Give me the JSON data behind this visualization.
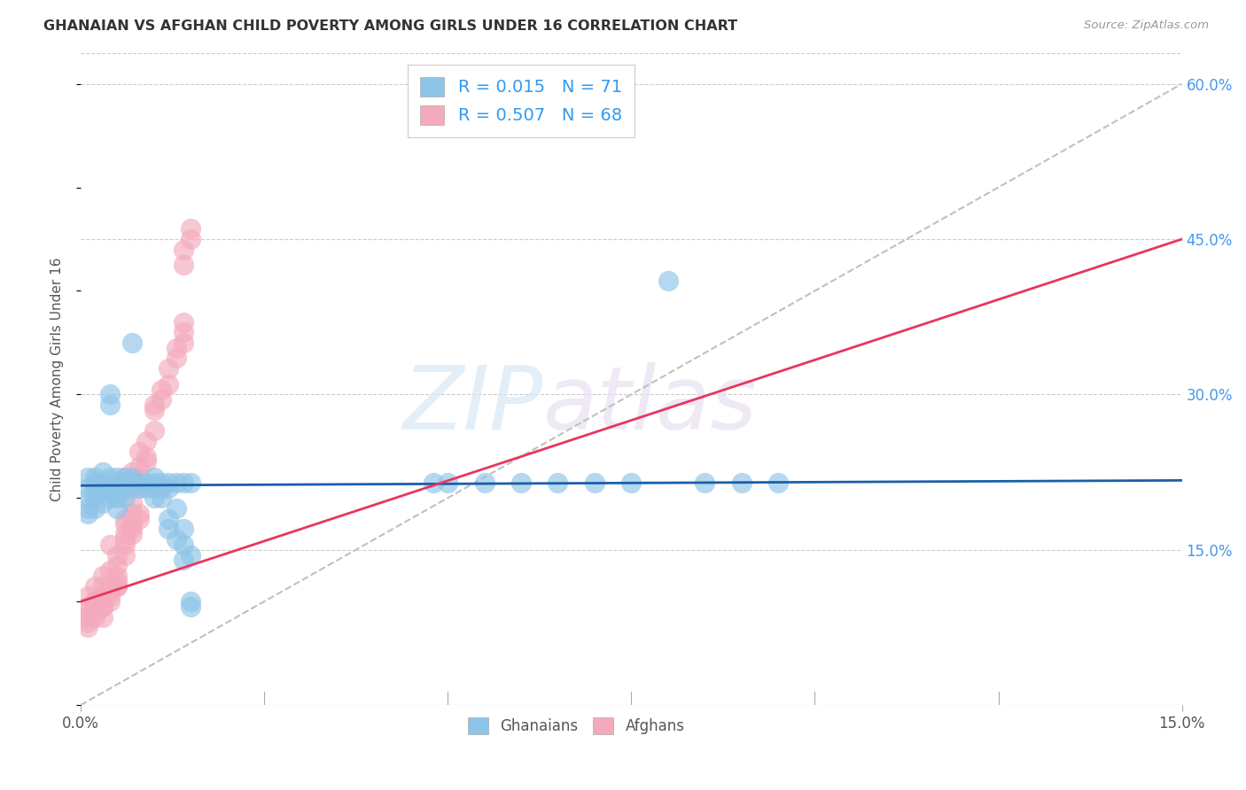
{
  "title": "GHANAIAN VS AFGHAN CHILD POVERTY AMONG GIRLS UNDER 16 CORRELATION CHART",
  "source": "Source: ZipAtlas.com",
  "ylabel": "Child Poverty Among Girls Under 16",
  "xmin": 0.0,
  "xmax": 0.15,
  "ymin": 0.0,
  "ymax": 0.63,
  "yticks": [
    0.15,
    0.3,
    0.45,
    0.6
  ],
  "ytick_labels": [
    "15.0%",
    "30.0%",
    "45.0%",
    "60.0%"
  ],
  "xticks": [
    0.0,
    0.15
  ],
  "xtick_labels": [
    "0.0%",
    "15.0%"
  ],
  "xtick_minor": [
    0.025,
    0.05,
    0.075,
    0.1,
    0.125
  ],
  "ghanaian_color": "#8ec4e8",
  "afghan_color": "#f4aabc",
  "ghanaian_line_color": "#1a5fa8",
  "afghan_line_color": "#e8365d",
  "ref_line_color": "#c0c0c0",
  "background_color": "#ffffff",
  "grid_color": "#cccccc",
  "watermark_zip": "ZIP",
  "watermark_atlas": "atlas",
  "ghanaian_N": 71,
  "afghan_N": 68,
  "ghanaian_R": 0.015,
  "afghan_R": 0.507,
  "ghanaian_scatter": [
    [
      0.001,
      0.21
    ],
    [
      0.001,
      0.19
    ],
    [
      0.001,
      0.22
    ],
    [
      0.001,
      0.2
    ],
    [
      0.001,
      0.185
    ],
    [
      0.002,
      0.215
    ],
    [
      0.002,
      0.2
    ],
    [
      0.002,
      0.22
    ],
    [
      0.002,
      0.19
    ],
    [
      0.002,
      0.21
    ],
    [
      0.003,
      0.215
    ],
    [
      0.003,
      0.205
    ],
    [
      0.003,
      0.225
    ],
    [
      0.003,
      0.195
    ],
    [
      0.003,
      0.21
    ],
    [
      0.004,
      0.22
    ],
    [
      0.004,
      0.29
    ],
    [
      0.004,
      0.3
    ],
    [
      0.004,
      0.2
    ],
    [
      0.004,
      0.21
    ],
    [
      0.005,
      0.215
    ],
    [
      0.005,
      0.205
    ],
    [
      0.005,
      0.21
    ],
    [
      0.005,
      0.2
    ],
    [
      0.005,
      0.22
    ],
    [
      0.005,
      0.19
    ],
    [
      0.006,
      0.215
    ],
    [
      0.006,
      0.21
    ],
    [
      0.006,
      0.22
    ],
    [
      0.006,
      0.2
    ],
    [
      0.007,
      0.215
    ],
    [
      0.007,
      0.21
    ],
    [
      0.007,
      0.22
    ],
    [
      0.007,
      0.35
    ],
    [
      0.008,
      0.215
    ],
    [
      0.008,
      0.21
    ],
    [
      0.009,
      0.215
    ],
    [
      0.009,
      0.21
    ],
    [
      0.01,
      0.215
    ],
    [
      0.01,
      0.21
    ],
    [
      0.01,
      0.22
    ],
    [
      0.01,
      0.2
    ],
    [
      0.011,
      0.215
    ],
    [
      0.011,
      0.21
    ],
    [
      0.011,
      0.2
    ],
    [
      0.012,
      0.215
    ],
    [
      0.012,
      0.21
    ],
    [
      0.012,
      0.18
    ],
    [
      0.012,
      0.17
    ],
    [
      0.013,
      0.215
    ],
    [
      0.013,
      0.19
    ],
    [
      0.013,
      0.16
    ],
    [
      0.014,
      0.215
    ],
    [
      0.014,
      0.17
    ],
    [
      0.014,
      0.155
    ],
    [
      0.014,
      0.14
    ],
    [
      0.015,
      0.215
    ],
    [
      0.015,
      0.145
    ],
    [
      0.015,
      0.1
    ],
    [
      0.015,
      0.095
    ],
    [
      0.048,
      0.215
    ],
    [
      0.05,
      0.215
    ],
    [
      0.055,
      0.215
    ],
    [
      0.06,
      0.215
    ],
    [
      0.065,
      0.215
    ],
    [
      0.07,
      0.215
    ],
    [
      0.075,
      0.215
    ],
    [
      0.08,
      0.41
    ],
    [
      0.085,
      0.215
    ],
    [
      0.09,
      0.215
    ],
    [
      0.095,
      0.215
    ]
  ],
  "afghan_scatter": [
    [
      0.001,
      0.09
    ],
    [
      0.001,
      0.085
    ],
    [
      0.001,
      0.095
    ],
    [
      0.001,
      0.105
    ],
    [
      0.002,
      0.1
    ],
    [
      0.002,
      0.095
    ],
    [
      0.002,
      0.085
    ],
    [
      0.002,
      0.115
    ],
    [
      0.003,
      0.105
    ],
    [
      0.003,
      0.095
    ],
    [
      0.003,
      0.115
    ],
    [
      0.003,
      0.125
    ],
    [
      0.004,
      0.115
    ],
    [
      0.004,
      0.105
    ],
    [
      0.004,
      0.13
    ],
    [
      0.004,
      0.155
    ],
    [
      0.005,
      0.125
    ],
    [
      0.005,
      0.115
    ],
    [
      0.005,
      0.135
    ],
    [
      0.005,
      0.145
    ],
    [
      0.006,
      0.175
    ],
    [
      0.006,
      0.165
    ],
    [
      0.006,
      0.16
    ],
    [
      0.006,
      0.18
    ],
    [
      0.006,
      0.22
    ],
    [
      0.007,
      0.185
    ],
    [
      0.007,
      0.175
    ],
    [
      0.007,
      0.195
    ],
    [
      0.007,
      0.225
    ],
    [
      0.008,
      0.22
    ],
    [
      0.008,
      0.21
    ],
    [
      0.008,
      0.23
    ],
    [
      0.008,
      0.245
    ],
    [
      0.009,
      0.235
    ],
    [
      0.009,
      0.24
    ],
    [
      0.009,
      0.255
    ],
    [
      0.01,
      0.265
    ],
    [
      0.01,
      0.285
    ],
    [
      0.01,
      0.29
    ],
    [
      0.011,
      0.295
    ],
    [
      0.011,
      0.305
    ],
    [
      0.012,
      0.31
    ],
    [
      0.012,
      0.325
    ],
    [
      0.013,
      0.335
    ],
    [
      0.013,
      0.345
    ],
    [
      0.014,
      0.35
    ],
    [
      0.014,
      0.36
    ],
    [
      0.014,
      0.37
    ],
    [
      0.014,
      0.425
    ],
    [
      0.014,
      0.44
    ],
    [
      0.015,
      0.45
    ],
    [
      0.015,
      0.46
    ],
    [
      0.001,
      0.08
    ],
    [
      0.001,
      0.075
    ],
    [
      0.002,
      0.09
    ],
    [
      0.002,
      0.1
    ],
    [
      0.003,
      0.095
    ],
    [
      0.003,
      0.085
    ],
    [
      0.004,
      0.11
    ],
    [
      0.004,
      0.1
    ],
    [
      0.005,
      0.12
    ],
    [
      0.005,
      0.115
    ],
    [
      0.006,
      0.145
    ],
    [
      0.006,
      0.155
    ],
    [
      0.007,
      0.165
    ],
    [
      0.007,
      0.17
    ],
    [
      0.008,
      0.18
    ],
    [
      0.008,
      0.185
    ]
  ]
}
